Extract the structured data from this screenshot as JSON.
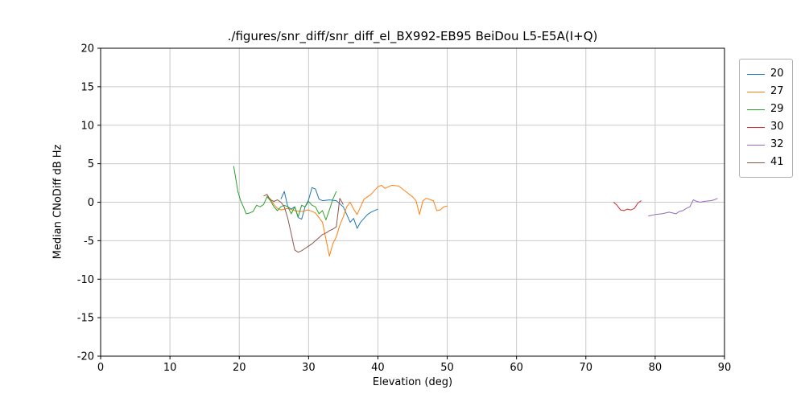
{
  "chart_data": {
    "type": "line",
    "title": "./figures/snr_diff/snr_diff_el_BX992-EB95 BeiDou  L5-E5A(I+Q)",
    "xlabel": "Elevation (deg)",
    "ylabel": "Median CNoDiff dB Hz",
    "xlim": [
      0,
      90
    ],
    "ylim": [
      -20,
      20
    ],
    "xticks": [
      0,
      10,
      20,
      30,
      40,
      50,
      60,
      70,
      80,
      90
    ],
    "yticks": [
      -20,
      -15,
      -10,
      -5,
      0,
      5,
      10,
      15,
      20
    ],
    "grid": true,
    "legend_position": "upper right outside",
    "series": [
      {
        "name": "20",
        "color": "#1f77b4",
        "points": [
          [
            26,
            0.4
          ],
          [
            26.5,
            1.4
          ],
          [
            27,
            -0.6
          ],
          [
            27.5,
            -0.9
          ],
          [
            28,
            -0.6
          ],
          [
            28.5,
            -2.0
          ],
          [
            29,
            -2.2
          ],
          [
            29.5,
            -0.6
          ],
          [
            30,
            0.3
          ],
          [
            30.5,
            1.9
          ],
          [
            31,
            1.7
          ],
          [
            31.5,
            0.4
          ],
          [
            32,
            0.2
          ],
          [
            33,
            0.3
          ],
          [
            34,
            0.2
          ],
          [
            35,
            -0.6
          ],
          [
            35.5,
            -1.6
          ],
          [
            36,
            -2.6
          ],
          [
            36.5,
            -2.1
          ],
          [
            37,
            -3.4
          ],
          [
            37.5,
            -2.6
          ],
          [
            38,
            -2.1
          ],
          [
            38.5,
            -1.6
          ],
          [
            39,
            -1.3
          ],
          [
            40,
            -0.9
          ]
        ]
      },
      {
        "name": "27",
        "color": "#ff7f0e",
        "points": [
          [
            24,
            0.8
          ],
          [
            24.5,
            0.4
          ],
          [
            25,
            -0.3
          ],
          [
            25.5,
            -0.8
          ],
          [
            26,
            -1.0
          ],
          [
            27,
            -0.8
          ],
          [
            28,
            -1.1
          ],
          [
            29,
            -1.2
          ],
          [
            30,
            -1.0
          ],
          [
            31,
            -1.4
          ],
          [
            32,
            -2.6
          ],
          [
            33,
            -7.0
          ],
          [
            33.5,
            -5.4
          ],
          [
            34,
            -4.5
          ],
          [
            34.5,
            -3.0
          ],
          [
            35,
            -1.9
          ],
          [
            35.5,
            -0.6
          ],
          [
            36,
            0.0
          ],
          [
            36.5,
            -0.9
          ],
          [
            37,
            -1.6
          ],
          [
            38,
            0.4
          ],
          [
            39,
            1.0
          ],
          [
            40,
            2.0
          ],
          [
            40.5,
            2.2
          ],
          [
            41,
            1.8
          ],
          [
            42,
            2.2
          ],
          [
            43,
            2.1
          ],
          [
            44,
            1.4
          ],
          [
            45,
            0.7
          ],
          [
            45.5,
            0.2
          ],
          [
            46,
            -1.6
          ],
          [
            46.5,
            0.2
          ],
          [
            47,
            0.5
          ],
          [
            48,
            0.2
          ],
          [
            48.5,
            -1.1
          ],
          [
            49,
            -1.0
          ],
          [
            49.5,
            -0.6
          ],
          [
            50,
            -0.5
          ]
        ]
      },
      {
        "name": "29",
        "color": "#2ca02c",
        "points": [
          [
            19.2,
            4.7
          ],
          [
            19.8,
            1.4
          ],
          [
            20.2,
            0.2
          ],
          [
            20.6,
            -0.6
          ],
          [
            21,
            -1.5
          ],
          [
            21.5,
            -1.4
          ],
          [
            22,
            -1.2
          ],
          [
            22.5,
            -0.4
          ],
          [
            23,
            -0.6
          ],
          [
            23.5,
            -0.3
          ],
          [
            24,
            0.7
          ],
          [
            24.5,
            0.2
          ],
          [
            25,
            -0.6
          ],
          [
            25.5,
            -1.1
          ],
          [
            26,
            -0.6
          ],
          [
            26.5,
            -0.4
          ],
          [
            27,
            -0.6
          ],
          [
            27.5,
            -1.5
          ],
          [
            28,
            -0.6
          ],
          [
            28.5,
            -1.9
          ],
          [
            29,
            -0.4
          ],
          [
            29.5,
            -0.6
          ],
          [
            30,
            0.1
          ],
          [
            30.5,
            -0.4
          ],
          [
            31,
            -0.6
          ],
          [
            31.5,
            -1.5
          ],
          [
            32,
            -1.1
          ],
          [
            32.5,
            -2.3
          ],
          [
            33,
            -1.0
          ],
          [
            33.5,
            0.4
          ],
          [
            34,
            1.4
          ]
        ]
      },
      {
        "name": "30",
        "color": "#d62728",
        "points": [
          [
            74,
            0.0
          ],
          [
            74.5,
            -0.4
          ],
          [
            75,
            -1.0
          ],
          [
            75.5,
            -1.1
          ],
          [
            76,
            -0.9
          ],
          [
            76.5,
            -1.0
          ],
          [
            77,
            -0.8
          ],
          [
            77.5,
            -0.1
          ],
          [
            78,
            0.2
          ]
        ]
      },
      {
        "name": "32",
        "color": "#9467bd",
        "points": [
          [
            79,
            -1.8
          ],
          [
            79.5,
            -1.7
          ],
          [
            80,
            -1.6
          ],
          [
            81,
            -1.5
          ],
          [
            82,
            -1.3
          ],
          [
            82.5,
            -1.4
          ],
          [
            83,
            -1.5
          ],
          [
            83.5,
            -1.2
          ],
          [
            84,
            -1.1
          ],
          [
            84.5,
            -0.8
          ],
          [
            85,
            -0.6
          ],
          [
            85.5,
            0.3
          ],
          [
            86,
            0.1
          ],
          [
            86.5,
            0.0
          ],
          [
            87,
            0.1
          ],
          [
            88,
            0.2
          ],
          [
            88.5,
            0.3
          ],
          [
            89,
            0.5
          ]
        ]
      },
      {
        "name": "41",
        "color": "#8c564b",
        "points": [
          [
            23.5,
            0.8
          ],
          [
            24,
            1.0
          ],
          [
            24.5,
            0.3
          ],
          [
            25,
            0.1
          ],
          [
            25.5,
            0.3
          ],
          [
            26,
            0.0
          ],
          [
            26.5,
            -0.6
          ],
          [
            27,
            -2.1
          ],
          [
            27.5,
            -4.1
          ],
          [
            28,
            -6.2
          ],
          [
            28.5,
            -6.5
          ],
          [
            29,
            -6.3
          ],
          [
            29.5,
            -6.0
          ],
          [
            30,
            -5.7
          ],
          [
            30.5,
            -5.4
          ],
          [
            31,
            -5.0
          ],
          [
            31.5,
            -4.6
          ],
          [
            32,
            -4.2
          ],
          [
            32.5,
            -4.0
          ],
          [
            33,
            -3.7
          ],
          [
            33.5,
            -3.5
          ],
          [
            34,
            -3.2
          ],
          [
            34.5,
            0.5
          ],
          [
            35,
            -0.3
          ]
        ]
      }
    ],
    "style": {
      "grid_color": "#c9c9c9",
      "axis_color": "#000000",
      "tick_label_color": "#000000"
    }
  }
}
